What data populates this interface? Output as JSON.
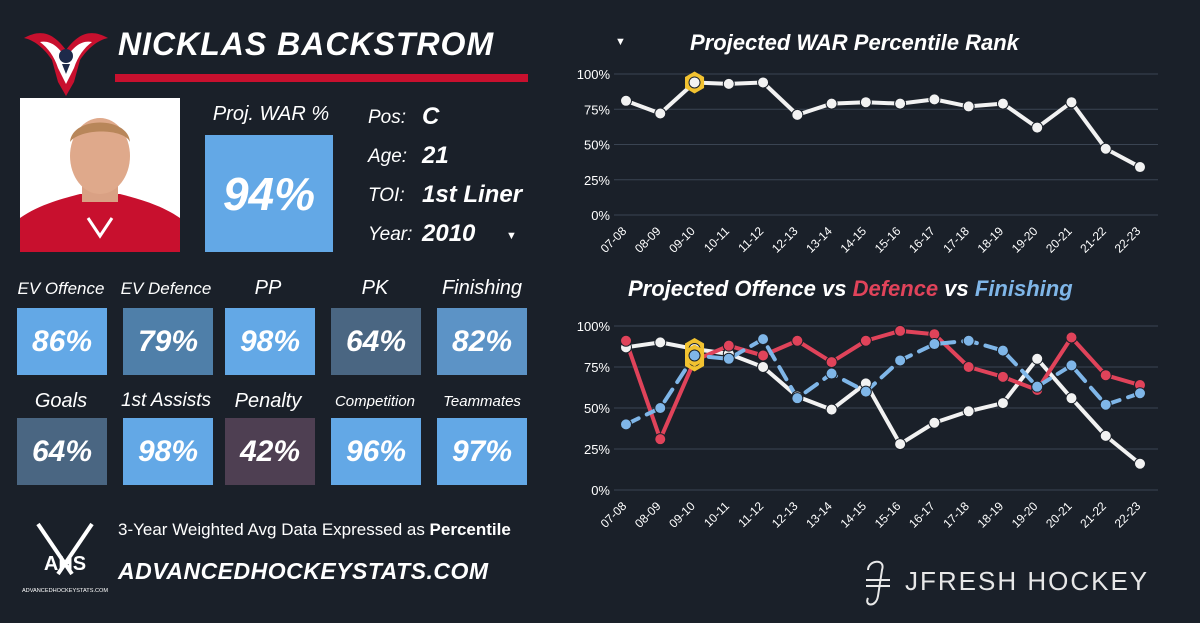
{
  "player": {
    "name": "NICKLAS BACKSTROM"
  },
  "proj_war": {
    "label": "Proj. WAR %",
    "value": "94%"
  },
  "info": {
    "pos_label": "Pos:",
    "pos": "C",
    "age_label": "Age:",
    "age": "21",
    "toi_label": "TOI:",
    "toi": "1st Liner",
    "year_label": "Year:",
    "year": "2010"
  },
  "stats": [
    {
      "label": "EV Offence",
      "value": "86%",
      "color": "#63a8e6"
    },
    {
      "label": "EV Defence",
      "value": "79%",
      "color": "#4f7fa9"
    },
    {
      "label": "PP",
      "value": "98%",
      "color": "#63a8e6"
    },
    {
      "label": "PK",
      "value": "64%",
      "color": "#4a6682"
    },
    {
      "label": "Finishing",
      "value": "82%",
      "color": "#5c93c6"
    },
    {
      "label": "Goals",
      "value": "64%",
      "color": "#4a6682"
    },
    {
      "label": "1st Assists",
      "value": "98%",
      "color": "#63a8e6"
    },
    {
      "label": "Penalty",
      "value": "42%",
      "color": "#4e3f52"
    },
    {
      "label": "Competition",
      "value": "96%",
      "color": "#63a8e6"
    },
    {
      "label": "Teammates",
      "value": "97%",
      "color": "#63a8e6"
    }
  ],
  "footer": {
    "text_prefix": "3-Year Weighted Avg Data Expressed as ",
    "text_bold": "Percentile",
    "ahs_letters": "AHS",
    "ahs_small": "ADVANCEDHOCKEYSTATS.COM",
    "site": "ADVANCEDHOCKEYSTATS.COM",
    "brand": "JFRESH HOCKEY"
  },
  "colors": {
    "background": "#1a2029",
    "red": "#c8102e",
    "blue": "#63a8e6",
    "line_white": "#f2f2f2",
    "line_red": "#e0435a",
    "line_blue": "#7fb6e8",
    "highlight": "#f2c230"
  },
  "chart_data": [
    {
      "type": "line",
      "title": "Projected WAR Percentile Rank",
      "categories": [
        "07-08",
        "08-09",
        "09-10",
        "10-11",
        "11-12",
        "12-13",
        "13-14",
        "14-15",
        "15-16",
        "16-17",
        "17-18",
        "18-19",
        "19-20",
        "20-21",
        "21-22",
        "22-23"
      ],
      "series": [
        {
          "values": [
            81,
            72,
            94,
            93,
            94,
            71,
            79,
            80,
            79,
            82,
            77,
            79,
            62,
            80,
            47,
            34
          ],
          "color": "#f2f2f2"
        }
      ],
      "highlight_index": 2,
      "ylim": [
        0,
        100
      ],
      "yticks": [
        "0%",
        "25%",
        "50%",
        "75%",
        "100%"
      ],
      "grid": true
    },
    {
      "type": "line",
      "title": "Projected Offence vs Defence vs Finishing",
      "title_parts": [
        {
          "text": "Projected Offence vs ",
          "color": "#ffffff"
        },
        {
          "text": "Defence",
          "color": "#e0435a"
        },
        {
          "text": " vs ",
          "color": "#ffffff"
        },
        {
          "text": "Finishing",
          "color": "#7fb6e8"
        }
      ],
      "categories": [
        "07-08",
        "08-09",
        "09-10",
        "10-11",
        "11-12",
        "12-13",
        "13-14",
        "14-15",
        "15-16",
        "16-17",
        "17-18",
        "18-19",
        "19-20",
        "20-21",
        "21-22",
        "22-23"
      ],
      "series": [
        {
          "values": [
            87,
            90,
            86,
            83,
            75,
            57,
            49,
            65,
            28,
            41,
            48,
            53,
            80,
            56,
            33,
            16
          ],
          "color": "#f2f2f2",
          "style": "solid"
        },
        {
          "values": [
            91,
            31,
            79,
            88,
            82,
            91,
            78,
            91,
            97,
            95,
            75,
            69,
            61,
            93,
            70,
            64
          ],
          "color": "#e0435a",
          "style": "solid"
        },
        {
          "values": [
            40,
            50,
            82,
            80,
            92,
            56,
            71,
            60,
            79,
            89,
            91,
            85,
            63,
            76,
            52,
            59
          ],
          "color": "#7fb6e8",
          "style": "dashed"
        }
      ],
      "highlight_index": 2,
      "ylim": [
        0,
        100
      ],
      "yticks": [
        "0%",
        "25%",
        "50%",
        "75%",
        "100%"
      ],
      "grid": true
    }
  ]
}
